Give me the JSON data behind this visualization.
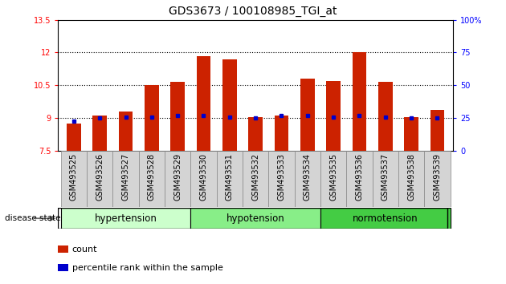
{
  "title": "GDS3673 / 100108985_TGI_at",
  "categories": [
    "GSM493525",
    "GSM493526",
    "GSM493527",
    "GSM493528",
    "GSM493529",
    "GSM493530",
    "GSM493531",
    "GSM493532",
    "GSM493533",
    "GSM493534",
    "GSM493535",
    "GSM493536",
    "GSM493537",
    "GSM493538",
    "GSM493539"
  ],
  "count_values": [
    8.75,
    9.1,
    9.3,
    10.5,
    10.65,
    11.85,
    11.7,
    9.05,
    9.1,
    10.8,
    10.7,
    12.0,
    10.65,
    9.05,
    9.35
  ],
  "percentile_values": [
    8.85,
    9.0,
    9.05,
    9.02,
    9.1,
    9.1,
    9.05,
    9.0,
    9.1,
    9.1,
    9.05,
    9.1,
    9.05,
    9.0,
    9.0
  ],
  "bar_bottom": 7.5,
  "ylim": [
    7.5,
    13.5
  ],
  "y2lim": [
    0,
    100
  ],
  "yticks": [
    7.5,
    9.0,
    10.5,
    12.0,
    13.5
  ],
  "y2ticks": [
    0,
    25,
    50,
    75,
    100
  ],
  "ytick_labels": [
    "7.5",
    "9",
    "10.5",
    "12",
    "13.5"
  ],
  "y2tick_labels": [
    "0",
    "25",
    "50",
    "75",
    "100%"
  ],
  "gridlines": [
    9.0,
    10.5,
    12.0
  ],
  "bar_color": "#cc2200",
  "percentile_color": "#0000cc",
  "groups": [
    {
      "label": "hypertension",
      "start": 0,
      "end": 4
    },
    {
      "label": "hypotension",
      "start": 5,
      "end": 9
    },
    {
      "label": "normotension",
      "start": 10,
      "end": 14
    }
  ],
  "group_colors": [
    "#ccffcc",
    "#88ee88",
    "#44cc44"
  ],
  "disease_state_label": "disease state",
  "legend_count_label": "count",
  "legend_percentile_label": "percentile rank within the sample",
  "bar_width": 0.55,
  "tick_label_fontsize": 7,
  "title_fontsize": 10,
  "group_label_fontsize": 8.5
}
